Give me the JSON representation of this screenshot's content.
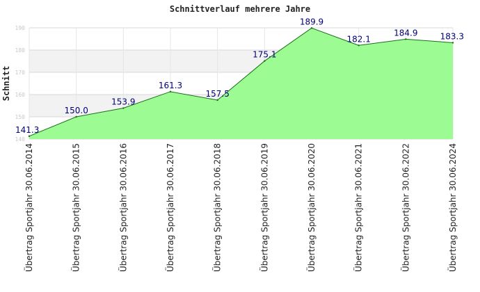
{
  "chart_data": {
    "type": "area",
    "title": "Schnittverlauf mehrere Jahre",
    "xlabel": "",
    "ylabel": "Schnitt",
    "categories": [
      "Übertrag Sportjahr 30.06.2014",
      "Übertrag Sportjahr 30.06.2015",
      "Übertrag Sportjahr 30.06.2016",
      "Übertrag Sportjahr 30.06.2017",
      "Übertrag Sportjahr 30.06.2018",
      "Übertrag Sportjahr 30.06.2019",
      "Übertrag Sportjahr 30.06.2020",
      "Übertrag Sportjahr 30.06.2021",
      "Übertrag Sportjahr 30.06.2022",
      "Übertrag Sportjahr 30.06.2024"
    ],
    "values": [
      141.3,
      150.0,
      153.9,
      161.3,
      157.5,
      175.1,
      189.9,
      182.1,
      184.9,
      183.3
    ],
    "data_labels": [
      "141.3",
      "150.0",
      "153.9",
      "161.3",
      "157.5",
      "175.1",
      "189.9",
      "182.1",
      "184.9",
      "183.3"
    ],
    "ylim": [
      140,
      190
    ],
    "yticks": [
      140,
      150,
      160,
      170,
      180,
      190
    ],
    "ytick_labels": [
      "140",
      "150",
      "160",
      "170",
      "180",
      "190"
    ],
    "grid": true,
    "legend": "none",
    "colors": {
      "fill": "#98fb8e",
      "line": "#1a6e1a",
      "band": "#f2f2f2",
      "grid": "#d8d8d8",
      "label": "#00007a"
    }
  }
}
